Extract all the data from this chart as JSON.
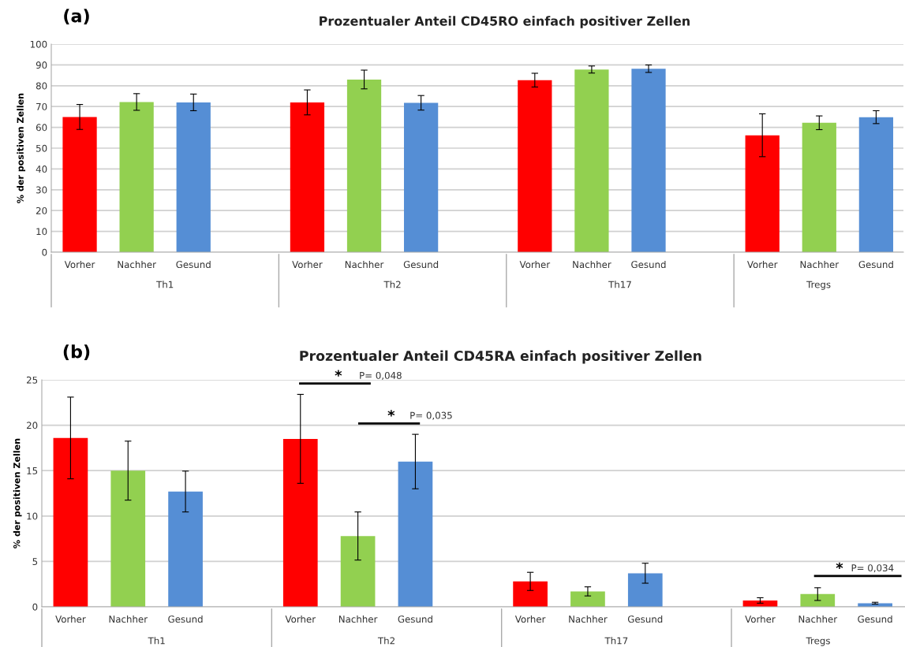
{
  "chart_data": [
    {
      "type": "bar",
      "title": "Prozentualer Anteil CD45RO einfach positiver Zellen",
      "ylabel": "% der positiven Zellen",
      "categories": [
        "Th1",
        "Th2",
        "Th17",
        "Tregs"
      ],
      "series": [
        {
          "name": "Vorher",
          "color": "#ff0000",
          "values": [
            65,
            72,
            82.7,
            56.2
          ],
          "errors": [
            6,
            6,
            3.3,
            10.3
          ]
        },
        {
          "name": "Nachher",
          "color": "#92d050",
          "values": [
            72.2,
            83,
            87.8,
            62.2
          ],
          "errors": [
            4,
            4.5,
            1.7,
            3.3
          ]
        },
        {
          "name": "Gesund",
          "color": "#558ed5",
          "values": [
            72,
            71.8,
            88.2,
            64.9
          ],
          "errors": [
            4,
            3.5,
            1.8,
            3.1
          ]
        }
      ],
      "ylim": [
        0,
        100
      ],
      "yticks": [
        0,
        10,
        20,
        30,
        40,
        50,
        60,
        70,
        80,
        90,
        100
      ],
      "grid": "y",
      "annotations": [
        "(a)"
      ]
    },
    {
      "type": "bar",
      "title": "Prozentualer Anteil CD45RA einfach positiver Zellen",
      "ylabel": "% der positiven Zellen",
      "categories": [
        "Th1",
        "Th2",
        "Th17",
        "Tregs"
      ],
      "series": [
        {
          "name": "Vorher",
          "color": "#ff0000",
          "values": [
            18.6,
            18.5,
            2.8,
            0.7
          ],
          "errors": [
            4.5,
            4.9,
            1,
            0.3
          ]
        },
        {
          "name": "Nachher",
          "color": "#92d050",
          "values": [
            15,
            7.8,
            1.7,
            1.4
          ],
          "errors": [
            3.25,
            2.65,
            0.5,
            0.7
          ]
        },
        {
          "name": "Gesund",
          "color": "#558ed5",
          "values": [
            12.7,
            16,
            3.7,
            0.4
          ],
          "errors": [
            2.25,
            3,
            1.1,
            0.1
          ]
        }
      ],
      "ylim": [
        0,
        25
      ],
      "yticks": [
        0,
        5,
        10,
        15,
        20,
        25
      ],
      "grid": "y",
      "annotations": [
        "(b)",
        "*",
        "P= 0,048",
        "*",
        "P= 0,035",
        "*",
        "P= 0,034"
      ]
    }
  ]
}
